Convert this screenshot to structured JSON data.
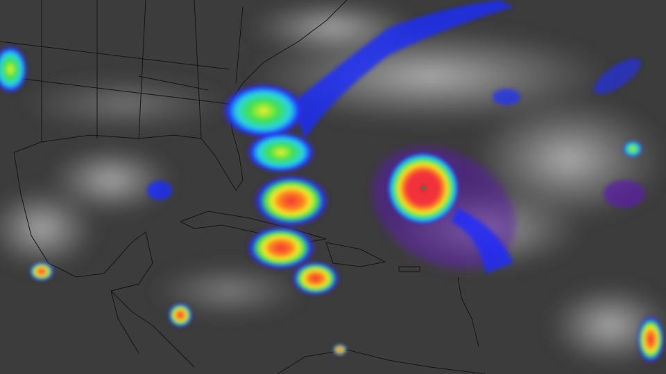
{
  "imagery": {
    "colors": {
      "background": "#3c3c3c",
      "cloud_gray": "#a8a8a8",
      "cold_blue": "#1a2cff",
      "purple": "#5a1ea8",
      "cyan": "#29d3e8",
      "green": "#3ee04a",
      "yellow": "#f2ef2a",
      "orange": "#ff8a1c",
      "red": "#f2303a",
      "border_line": "#141414"
    }
  }
}
